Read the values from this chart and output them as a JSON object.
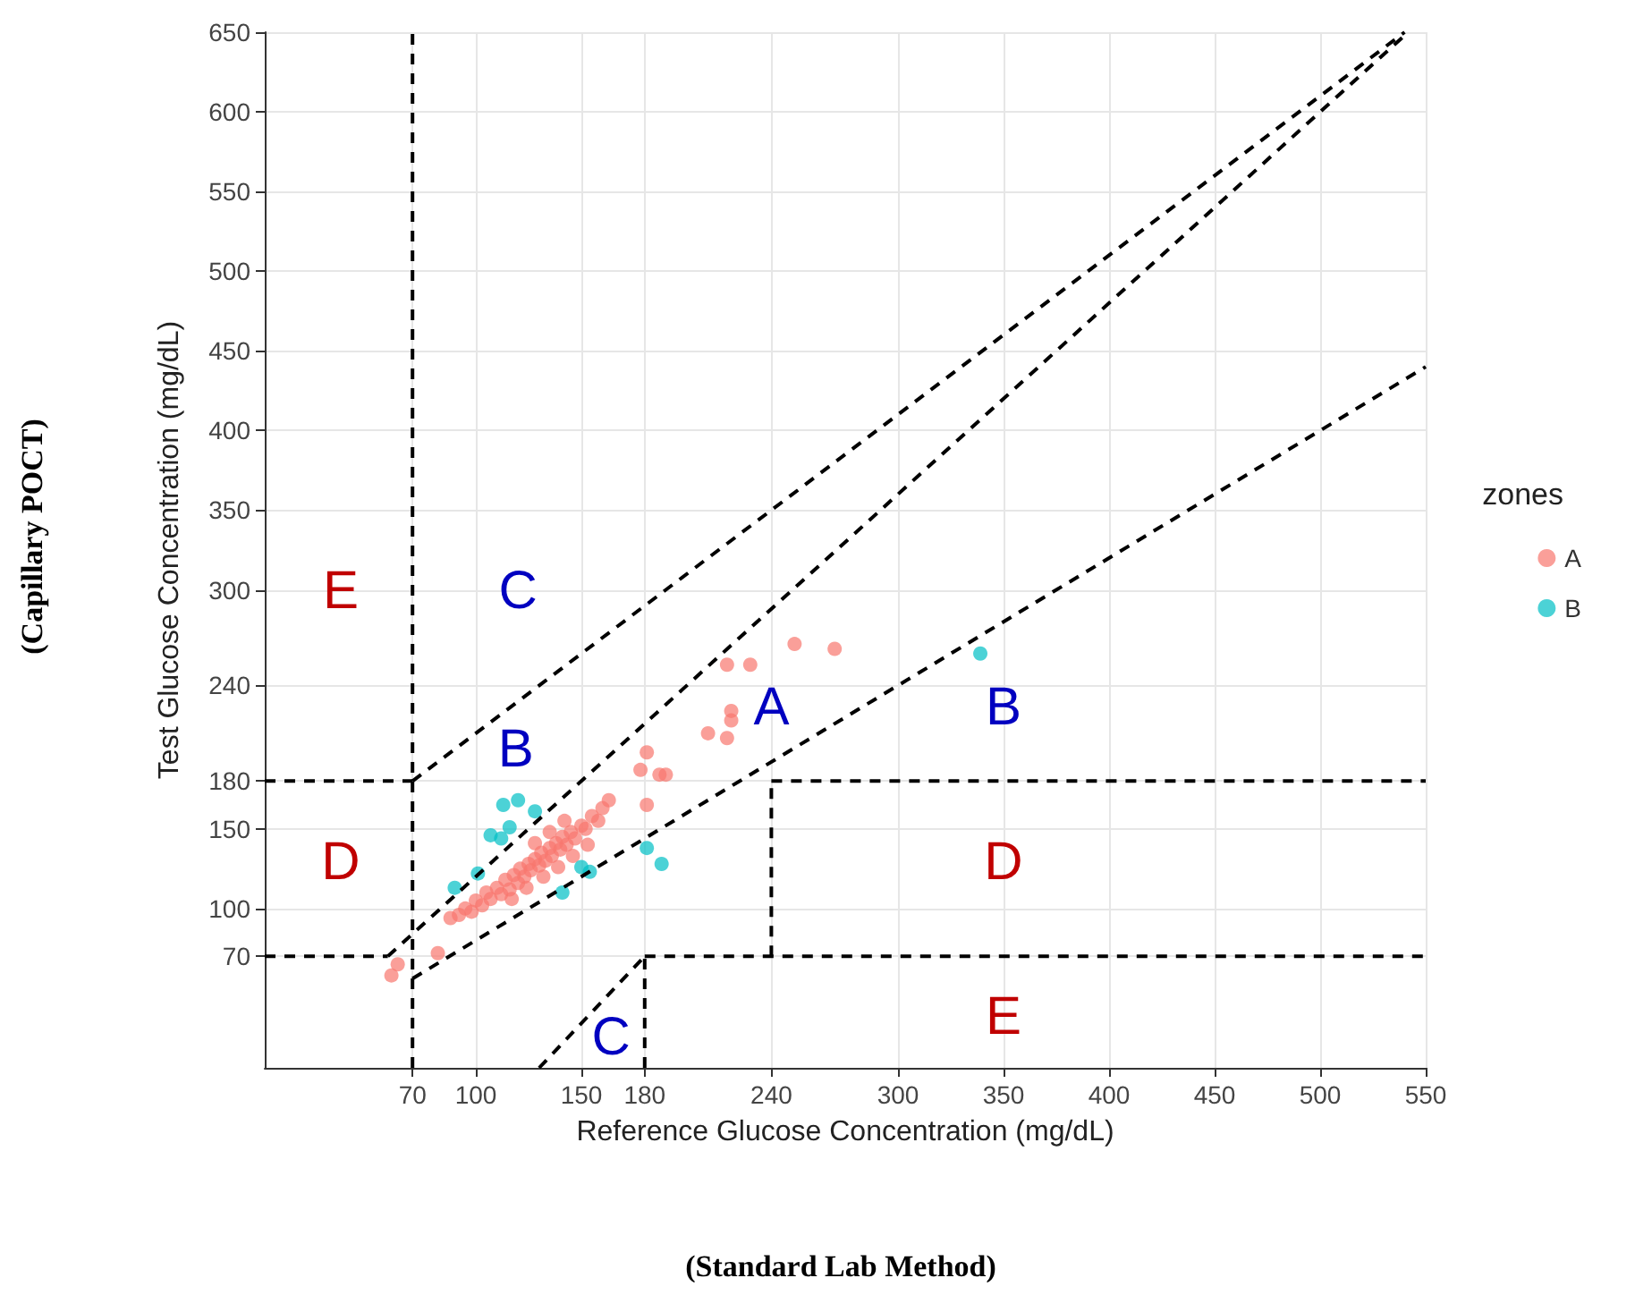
{
  "chart_data": {
    "type": "scatter",
    "xlabel": "Reference Glucose Concentration (mg/dL)",
    "ylabel": "Test Glucose Concentration (mg/dL)",
    "legend_title": "zones",
    "legend": "right",
    "grid": true,
    "xlim": [
      0,
      550
    ],
    "ylim": [
      0,
      650
    ],
    "xticks": [
      70,
      100,
      150,
      180,
      240,
      300,
      350,
      400,
      450,
      500,
      550
    ],
    "yticks": [
      70,
      100,
      150,
      180,
      240,
      300,
      350,
      400,
      450,
      500,
      550,
      600,
      650
    ],
    "series": [
      {
        "name": "A",
        "color": "#f8766d",
        "marker": "circle",
        "x": [
          60,
          63,
          82,
          88,
          92,
          95,
          98,
          100,
          103,
          105,
          107,
          110,
          112,
          114,
          116,
          118,
          120,
          121,
          123,
          125,
          126,
          128,
          130,
          131,
          133,
          135,
          136,
          138,
          140,
          141,
          143,
          145,
          147,
          150,
          152,
          155,
          158,
          160,
          163,
          117,
          124,
          132,
          139,
          146,
          153,
          128,
          135,
          142,
          181,
          178,
          187,
          181,
          190,
          210,
          219,
          221,
          221,
          219,
          230,
          251,
          270
        ],
        "values": [
          58,
          65,
          72,
          94,
          96,
          100,
          98,
          105,
          102,
          110,
          106,
          113,
          109,
          118,
          112,
          121,
          116,
          125,
          120,
          128,
          124,
          131,
          127,
          135,
          130,
          138,
          133,
          141,
          137,
          145,
          140,
          148,
          144,
          152,
          150,
          158,
          155,
          163,
          168,
          106,
          113,
          120,
          126,
          133,
          140,
          141,
          148,
          155,
          198,
          187,
          184,
          165,
          184,
          210,
          207,
          224,
          218,
          253,
          253,
          266,
          263
        ]
      },
      {
        "name": "B",
        "color": "#00bfc4",
        "marker": "circle",
        "x": [
          90,
          101,
          107,
          112,
          116,
          113,
          120,
          128,
          141,
          150,
          154,
          181,
          188,
          339
        ],
        "values": [
          113,
          122,
          146,
          144,
          151,
          165,
          168,
          161,
          110,
          126,
          123,
          138,
          128,
          260
        ]
      },
      {
        "type": "line",
        "color": "#000000",
        "marker": "none",
        "line_style": "dashed",
        "x": [
          70,
          70
        ],
        "values": [
          0,
          650
        ]
      },
      {
        "type": "line",
        "color": "#000000",
        "marker": "none",
        "line_style": "dashed",
        "x": [
          0,
          58.3
        ],
        "values": [
          70,
          70
        ]
      },
      {
        "type": "line",
        "color": "#000000",
        "marker": "none",
        "line_style": "dashed",
        "x": [
          180,
          550
        ],
        "values": [
          70,
          70
        ]
      },
      {
        "type": "line",
        "color": "#000000",
        "marker": "none",
        "line_style": "dashed",
        "x": [
          0,
          70
        ],
        "values": [
          180,
          180
        ]
      },
      {
        "type": "line",
        "color": "#000000",
        "marker": "none",
        "line_style": "dashed",
        "x": [
          240,
          550
        ],
        "values": [
          180,
          180
        ]
      },
      {
        "type": "line",
        "color": "#000000",
        "marker": "none",
        "line_style": "dashed",
        "x": [
          240,
          240
        ],
        "values": [
          70,
          180
        ]
      },
      {
        "type": "line",
        "color": "#000000",
        "marker": "none",
        "line_style": "dashed",
        "x": [
          180,
          180
        ],
        "values": [
          0,
          70
        ]
      },
      {
        "type": "line",
        "color": "#000000",
        "marker": "none",
        "line_style": "dashed",
        "x": [
          130,
          180
        ],
        "values": [
          0,
          70
        ]
      },
      {
        "type": "line",
        "color": "#000000",
        "marker": "none",
        "line_style": "dashed",
        "x": [
          70,
          540
        ],
        "values": [
          180,
          650
        ]
      },
      {
        "type": "line",
        "color": "#000000",
        "marker": "none",
        "line_style": "dashed",
        "x": [
          58.3,
          541.7
        ],
        "values": [
          70,
          650
        ]
      },
      {
        "type": "line",
        "color": "#000000",
        "marker": "none",
        "line_style": "dashed",
        "x": [
          70,
          550
        ],
        "values": [
          56,
          440
        ]
      }
    ],
    "annotations": [
      "E",
      "C",
      "B",
      "A",
      "B",
      "D",
      "D",
      "E",
      "C",
      "(Capillary POCT)",
      "(Standard Lab Method)"
    ]
  }
}
